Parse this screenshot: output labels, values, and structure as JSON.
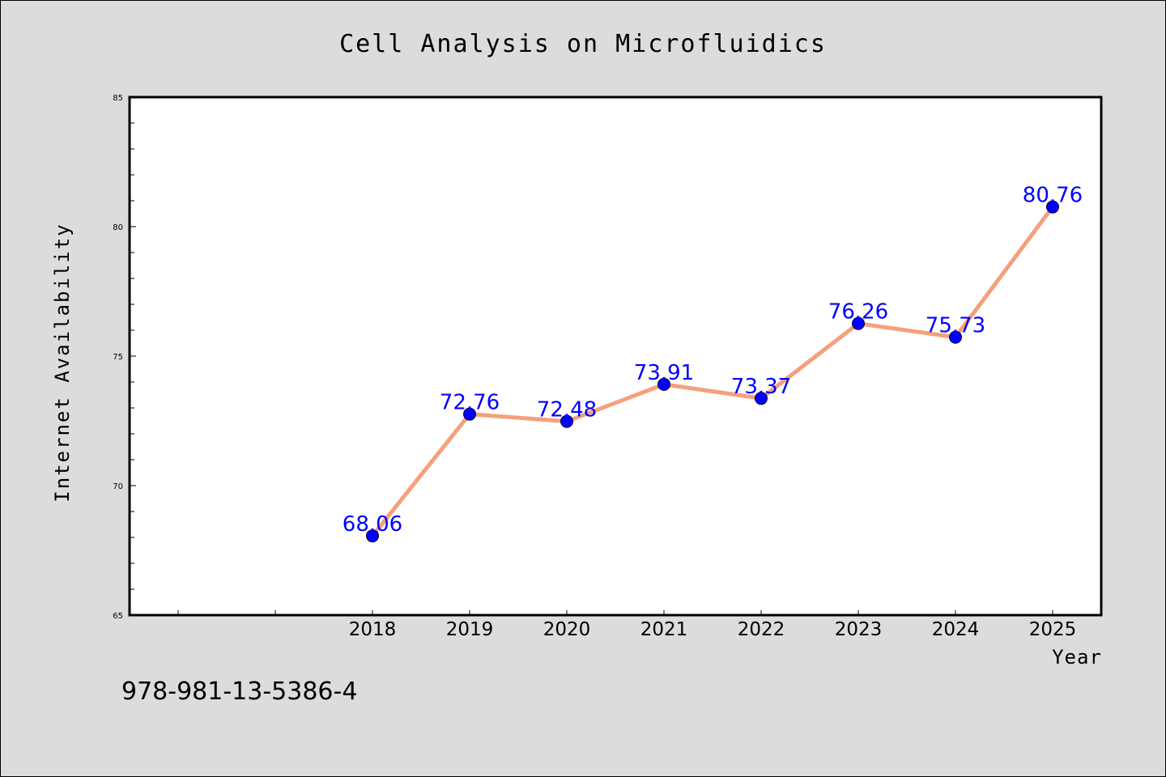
{
  "chart_data": {
    "type": "line",
    "title": "Cell Analysis on Microfluidics",
    "xlabel": "Year",
    "ylabel": "Internet Availability",
    "x": [
      "2018",
      "2019",
      "2020",
      "2021",
      "2022",
      "2023",
      "2024",
      "2025"
    ],
    "series": [
      {
        "values": [
          68.06,
          72.76,
          72.48,
          73.91,
          73.37,
          76.26,
          75.73,
          80.76
        ]
      }
    ],
    "data_labels": [
      "68.06",
      "72.76",
      "72.48",
      "73.91",
      "73.37",
      "76.26",
      "75.73",
      "80.76"
    ],
    "ylim": [
      65,
      85
    ],
    "yticks": [
      "65",
      "70",
      "75",
      "80",
      "85"
    ],
    "grid": false,
    "legend": "none",
    "colors": {
      "background": "#dcdcdc",
      "plot_background": "#ffffff",
      "line": "#f5a07c",
      "marker": "#0000ff",
      "data_label": "#0000ff"
    }
  },
  "footer": {
    "isbn": "978-981-13-5386-4"
  }
}
